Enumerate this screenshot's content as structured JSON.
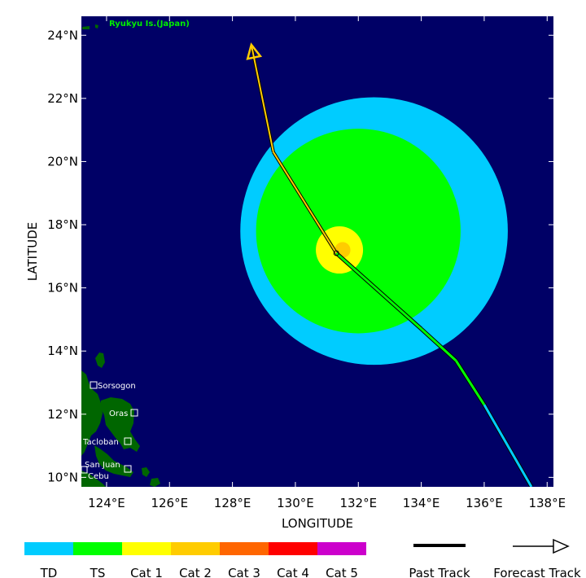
{
  "map": {
    "xlabel": "LONGITUDE",
    "ylabel": "LATITUDE",
    "lon_range": [
      123.2,
      138.2
    ],
    "lat_range": [
      9.7,
      24.6
    ],
    "lon_ticks": [
      "124°E",
      "126°E",
      "128°E",
      "130°E",
      "132°E",
      "134°E",
      "136°E",
      "138°E"
    ],
    "lat_ticks": [
      "10°N",
      "12°N",
      "14°N",
      "16°N",
      "18°N",
      "20°N",
      "22°N",
      "24°N"
    ],
    "region_label": "Ryukyu Is.(Japan)",
    "places": [
      "Sorsogon",
      "Oras",
      "Tacloban",
      "San Juan",
      "Cebu"
    ]
  },
  "wind_radii": {
    "ts_outer": {
      "lon": 132.5,
      "lat": 17.8,
      "radius_deg": 4.25,
      "category": "TD"
    },
    "ts_inner": {
      "lon": 132.0,
      "lat": 17.8,
      "radius_deg": 3.25,
      "category": "TS"
    },
    "cat1": {
      "lon": 131.4,
      "lat": 17.2,
      "radius_deg": 0.75,
      "category": "Cat 1"
    },
    "cat2": {
      "lon": 131.5,
      "lat": 17.2,
      "radius_deg": 0.25,
      "category": "Cat 2"
    }
  },
  "track": {
    "past": [
      {
        "lon": 137.5,
        "lat": 9.7,
        "category": "TD"
      },
      {
        "lon": 136.0,
        "lat": 12.3,
        "category": "TD"
      },
      {
        "lon": 135.1,
        "lat": 13.7,
        "category": "TS"
      },
      {
        "lon": 134.0,
        "lat": 14.7,
        "category": "TS"
      },
      {
        "lon": 131.3,
        "lat": 17.1,
        "category": "TS"
      }
    ],
    "forecast": [
      {
        "lon": 131.3,
        "lat": 17.1,
        "category": "Cat 1"
      },
      {
        "lon": 129.3,
        "lat": 20.3,
        "category": "Cat 2"
      },
      {
        "lon": 128.6,
        "lat": 23.7,
        "category": "Cat 2"
      }
    ]
  },
  "legend": {
    "categories": [
      {
        "label": "TD",
        "color": "#00ccff"
      },
      {
        "label": "TS",
        "color": "#00ff00"
      },
      {
        "label": "Cat 1",
        "color": "#ffff00"
      },
      {
        "label": "Cat 2",
        "color": "#ffcc00"
      },
      {
        "label": "Cat 3",
        "color": "#ff6600"
      },
      {
        "label": "Cat 4",
        "color": "#ff0000"
      },
      {
        "label": "Cat 5",
        "color": "#cc00cc"
      }
    ],
    "past_track_label": "Past Track",
    "forecast_track_label": "Forecast Track"
  },
  "colors": {
    "ocean": "#000066",
    "land": "#006600"
  }
}
